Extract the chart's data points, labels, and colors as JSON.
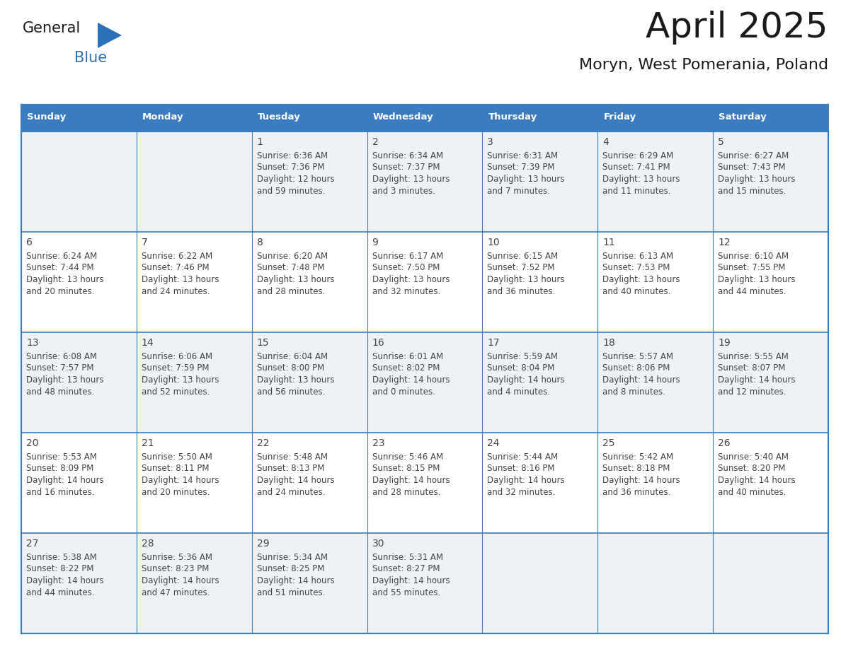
{
  "title": "April 2025",
  "subtitle": "Moryn, West Pomerania, Poland",
  "header_bg_color": "#3b7bbf",
  "header_text_color": "#ffffff",
  "row_bg_even": "#eef2f7",
  "row_bg_odd": "#ffffff",
  "border_color": "#3b7bbf",
  "day_headers": [
    "Sunday",
    "Monday",
    "Tuesday",
    "Wednesday",
    "Thursday",
    "Friday",
    "Saturday"
  ],
  "text_color": "#444444",
  "logo_general_color": "#1a1a1a",
  "logo_blue_color": "#2b72b8",
  "days": [
    {
      "day": 1,
      "col": 2,
      "row": 0,
      "sunrise": "6:36 AM",
      "sunset": "7:36 PM",
      "daylight": "12 hours and 59 minutes"
    },
    {
      "day": 2,
      "col": 3,
      "row": 0,
      "sunrise": "6:34 AM",
      "sunset": "7:37 PM",
      "daylight": "13 hours and 3 minutes"
    },
    {
      "day": 3,
      "col": 4,
      "row": 0,
      "sunrise": "6:31 AM",
      "sunset": "7:39 PM",
      "daylight": "13 hours and 7 minutes"
    },
    {
      "day": 4,
      "col": 5,
      "row": 0,
      "sunrise": "6:29 AM",
      "sunset": "7:41 PM",
      "daylight": "13 hours and 11 minutes"
    },
    {
      "day": 5,
      "col": 6,
      "row": 0,
      "sunrise": "6:27 AM",
      "sunset": "7:43 PM",
      "daylight": "13 hours and 15 minutes"
    },
    {
      "day": 6,
      "col": 0,
      "row": 1,
      "sunrise": "6:24 AM",
      "sunset": "7:44 PM",
      "daylight": "13 hours and 20 minutes"
    },
    {
      "day": 7,
      "col": 1,
      "row": 1,
      "sunrise": "6:22 AM",
      "sunset": "7:46 PM",
      "daylight": "13 hours and 24 minutes"
    },
    {
      "day": 8,
      "col": 2,
      "row": 1,
      "sunrise": "6:20 AM",
      "sunset": "7:48 PM",
      "daylight": "13 hours and 28 minutes"
    },
    {
      "day": 9,
      "col": 3,
      "row": 1,
      "sunrise": "6:17 AM",
      "sunset": "7:50 PM",
      "daylight": "13 hours and 32 minutes"
    },
    {
      "day": 10,
      "col": 4,
      "row": 1,
      "sunrise": "6:15 AM",
      "sunset": "7:52 PM",
      "daylight": "13 hours and 36 minutes"
    },
    {
      "day": 11,
      "col": 5,
      "row": 1,
      "sunrise": "6:13 AM",
      "sunset": "7:53 PM",
      "daylight": "13 hours and 40 minutes"
    },
    {
      "day": 12,
      "col": 6,
      "row": 1,
      "sunrise": "6:10 AM",
      "sunset": "7:55 PM",
      "daylight": "13 hours and 44 minutes"
    },
    {
      "day": 13,
      "col": 0,
      "row": 2,
      "sunrise": "6:08 AM",
      "sunset": "7:57 PM",
      "daylight": "13 hours and 48 minutes"
    },
    {
      "day": 14,
      "col": 1,
      "row": 2,
      "sunrise": "6:06 AM",
      "sunset": "7:59 PM",
      "daylight": "13 hours and 52 minutes"
    },
    {
      "day": 15,
      "col": 2,
      "row": 2,
      "sunrise": "6:04 AM",
      "sunset": "8:00 PM",
      "daylight": "13 hours and 56 minutes"
    },
    {
      "day": 16,
      "col": 3,
      "row": 2,
      "sunrise": "6:01 AM",
      "sunset": "8:02 PM",
      "daylight": "14 hours and 0 minutes"
    },
    {
      "day": 17,
      "col": 4,
      "row": 2,
      "sunrise": "5:59 AM",
      "sunset": "8:04 PM",
      "daylight": "14 hours and 4 minutes"
    },
    {
      "day": 18,
      "col": 5,
      "row": 2,
      "sunrise": "5:57 AM",
      "sunset": "8:06 PM",
      "daylight": "14 hours and 8 minutes"
    },
    {
      "day": 19,
      "col": 6,
      "row": 2,
      "sunrise": "5:55 AM",
      "sunset": "8:07 PM",
      "daylight": "14 hours and 12 minutes"
    },
    {
      "day": 20,
      "col": 0,
      "row": 3,
      "sunrise": "5:53 AM",
      "sunset": "8:09 PM",
      "daylight": "14 hours and 16 minutes"
    },
    {
      "day": 21,
      "col": 1,
      "row": 3,
      "sunrise": "5:50 AM",
      "sunset": "8:11 PM",
      "daylight": "14 hours and 20 minutes"
    },
    {
      "day": 22,
      "col": 2,
      "row": 3,
      "sunrise": "5:48 AM",
      "sunset": "8:13 PM",
      "daylight": "14 hours and 24 minutes"
    },
    {
      "day": 23,
      "col": 3,
      "row": 3,
      "sunrise": "5:46 AM",
      "sunset": "8:15 PM",
      "daylight": "14 hours and 28 minutes"
    },
    {
      "day": 24,
      "col": 4,
      "row": 3,
      "sunrise": "5:44 AM",
      "sunset": "8:16 PM",
      "daylight": "14 hours and 32 minutes"
    },
    {
      "day": 25,
      "col": 5,
      "row": 3,
      "sunrise": "5:42 AM",
      "sunset": "8:18 PM",
      "daylight": "14 hours and 36 minutes"
    },
    {
      "day": 26,
      "col": 6,
      "row": 3,
      "sunrise": "5:40 AM",
      "sunset": "8:20 PM",
      "daylight": "14 hours and 40 minutes"
    },
    {
      "day": 27,
      "col": 0,
      "row": 4,
      "sunrise": "5:38 AM",
      "sunset": "8:22 PM",
      "daylight": "14 hours and 44 minutes"
    },
    {
      "day": 28,
      "col": 1,
      "row": 4,
      "sunrise": "5:36 AM",
      "sunset": "8:23 PM",
      "daylight": "14 hours and 47 minutes"
    },
    {
      "day": 29,
      "col": 2,
      "row": 4,
      "sunrise": "5:34 AM",
      "sunset": "8:25 PM",
      "daylight": "14 hours and 51 minutes"
    },
    {
      "day": 30,
      "col": 3,
      "row": 4,
      "sunrise": "5:31 AM",
      "sunset": "8:27 PM",
      "daylight": "14 hours and 55 minutes"
    }
  ]
}
